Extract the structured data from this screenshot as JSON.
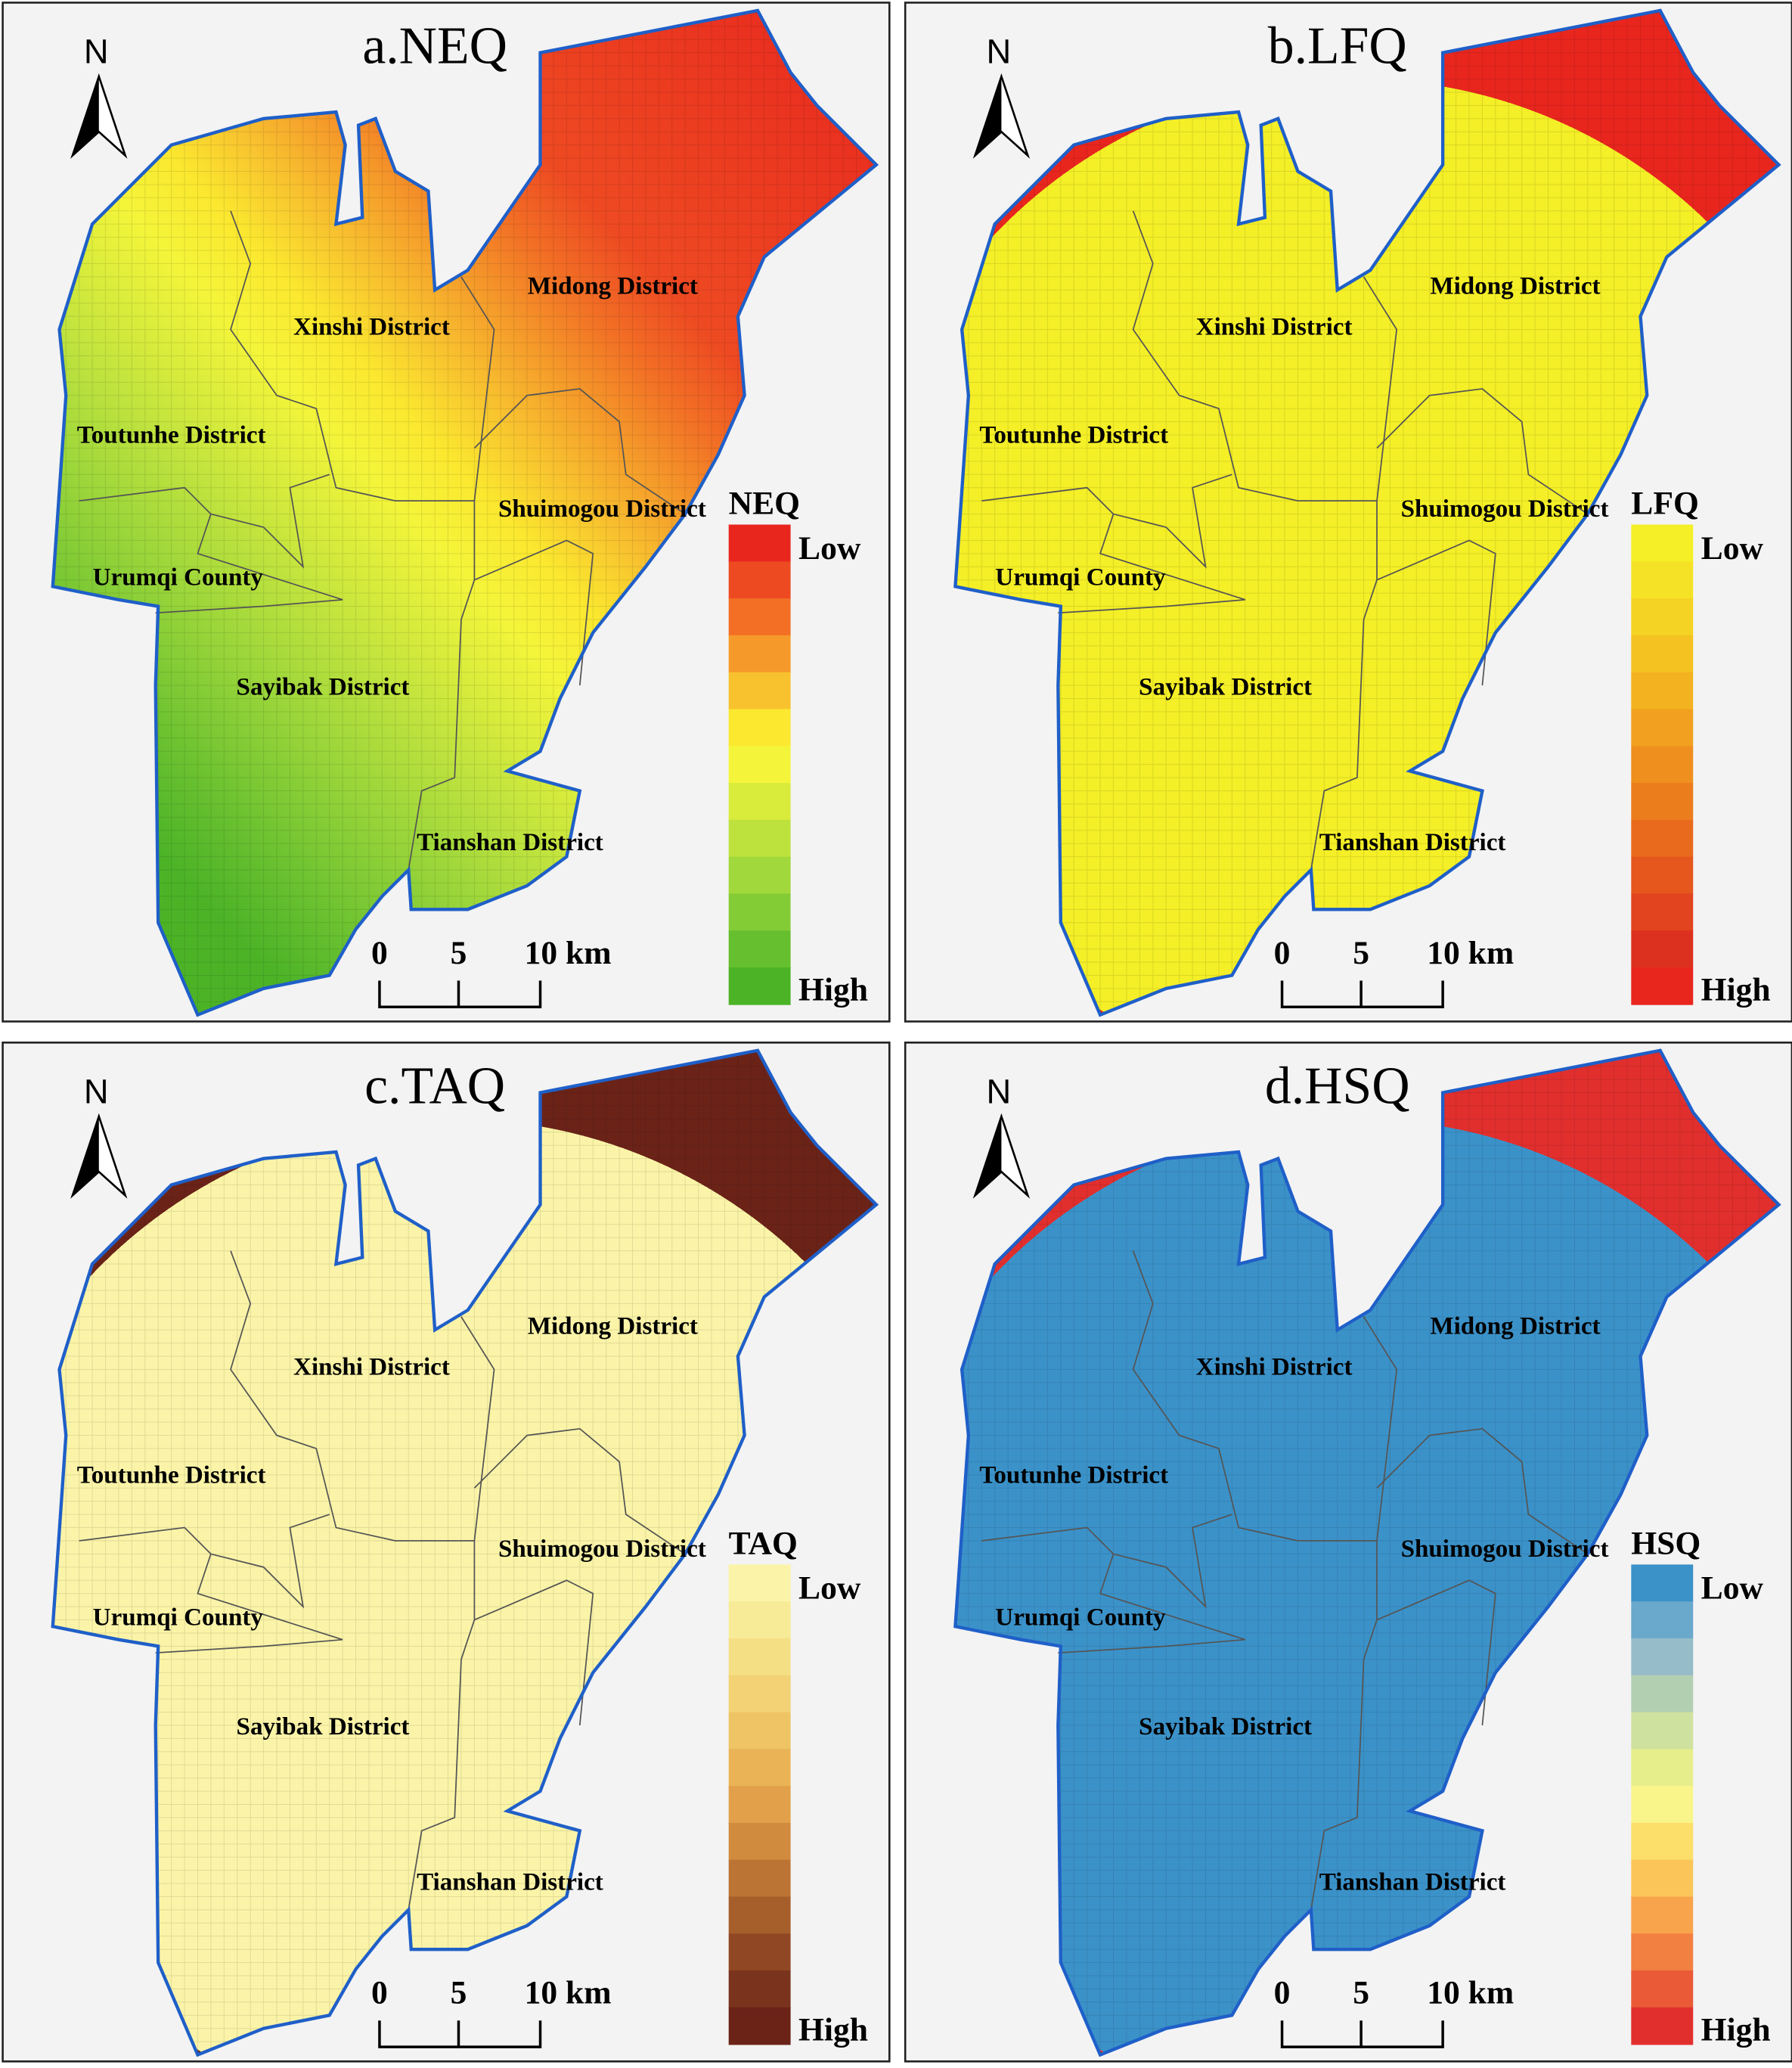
{
  "north_label": "N",
  "scale_labels": [
    "0",
    "5",
    "10 km"
  ],
  "districts": [
    "Midong District",
    "Xinshi District",
    "Toutunhe District",
    "Shuimogou District",
    "Urumqi County",
    "Sayibak District",
    "Tianshan District"
  ],
  "panels": [
    {
      "title": "a.NEQ",
      "legend_title": "NEQ",
      "legend_low": "Low",
      "legend_high": "High",
      "legend_colors": [
        "#e8261e",
        "#ee4a22",
        "#f26f25",
        "#f59a2a",
        "#f8c22f",
        "#fbe82f",
        "#f4f53a",
        "#d9ec3c",
        "#bde23e",
        "#a1d83b",
        "#84cc36",
        "#66bf2f",
        "#4cb327"
      ]
    },
    {
      "title": "b.LFQ",
      "legend_title": "LFQ",
      "legend_low": "Low",
      "legend_high": "High",
      "legend_colors": [
        "#f4ef27",
        "#f5e226",
        "#f5d324",
        "#f4c322",
        "#f3b220",
        "#f1a11f",
        "#ef8f1e",
        "#ec7d1d",
        "#e96a1d",
        "#e5571d",
        "#e1441e",
        "#dd311f",
        "#e8261e"
      ]
    },
    {
      "title": "c.TAQ",
      "legend_title": "TAQ",
      "legend_low": "Low",
      "legend_high": "High",
      "legend_colors": [
        "#fbf4a8",
        "#f8eb97",
        "#f5df85",
        "#f2d274",
        "#eec465",
        "#e9b356",
        "#e1a049",
        "#d18b3e",
        "#bc7434",
        "#a65e2b",
        "#904824",
        "#7a331d",
        "#6b2318"
      ]
    },
    {
      "title": "d.HSQ",
      "legend_title": "HSQ",
      "legend_low": "Low",
      "legend_high": "High",
      "legend_colors": [
        "#3b92c9",
        "#6aa8cc",
        "#95bcc8",
        "#b3cfb2",
        "#cfe19e",
        "#e6ee8b",
        "#f9f58a",
        "#fbdf6a",
        "#fbc55a",
        "#f8a44c",
        "#f28041",
        "#ea5a37",
        "#e12f2e"
      ]
    }
  ]
}
